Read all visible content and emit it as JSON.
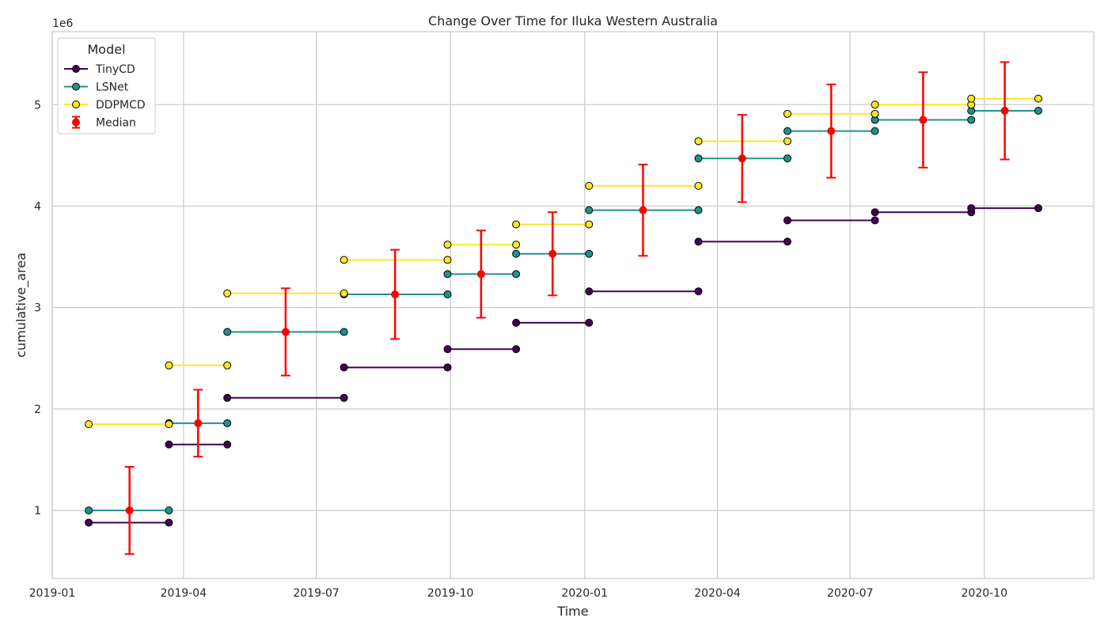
{
  "chart_data": {
    "type": "line",
    "title": "Change Over Time for Iluka Western Australia",
    "xlabel": "Time",
    "ylabel": "cumulative_area",
    "y_offset_label": "1e6",
    "y_scale_factor": 1000000,
    "xlim": [
      "2019-01-01",
      "2020-12-15"
    ],
    "ylim": [
      330000,
      5720000
    ],
    "grid": true,
    "legend": {
      "title": "Model",
      "placement": "top-left"
    },
    "x_ticks": [
      "2019-01",
      "2019-04",
      "2019-07",
      "2019-10",
      "2020-01",
      "2020-04",
      "2020-07",
      "2020-10"
    ],
    "x_tick_dates": [
      "2019-01-01",
      "2019-04-01",
      "2019-07-01",
      "2019-10-01",
      "2020-01-01",
      "2020-04-01",
      "2020-07-01",
      "2020-10-01"
    ],
    "y_ticks": [
      1000000,
      2000000,
      3000000,
      4000000,
      5000000
    ],
    "y_tick_labels": [
      "1",
      "2",
      "3",
      "4",
      "5"
    ],
    "series": [
      {
        "name": "TinyCD",
        "color": "#440154",
        "segments": [
          {
            "start": "2019-01-26",
            "end": "2019-03-22",
            "value": 880000
          },
          {
            "start": "2019-03-22",
            "end": "2019-05-01",
            "value": 1650000
          },
          {
            "start": "2019-05-01",
            "end": "2019-07-20",
            "value": 2110000
          },
          {
            "start": "2019-07-20",
            "end": "2019-09-29",
            "value": 2410000
          },
          {
            "start": "2019-09-29",
            "end": "2019-11-15",
            "value": 2590000
          },
          {
            "start": "2019-11-15",
            "end": "2020-01-04",
            "value": 2850000
          },
          {
            "start": "2020-01-04",
            "end": "2020-03-19",
            "value": 3160000
          },
          {
            "start": "2020-03-19",
            "end": "2020-05-19",
            "value": 3650000
          },
          {
            "start": "2020-05-19",
            "end": "2020-07-18",
            "value": 3860000
          },
          {
            "start": "2020-07-18",
            "end": "2020-09-22",
            "value": 3940000
          },
          {
            "start": "2020-09-22",
            "end": "2020-11-07",
            "value": 3980000
          }
        ]
      },
      {
        "name": "LSNet",
        "color": "#21918c",
        "segments": [
          {
            "start": "2019-01-26",
            "end": "2019-03-22",
            "value": 1000000
          },
          {
            "start": "2019-03-22",
            "end": "2019-05-01",
            "value": 1860000
          },
          {
            "start": "2019-05-01",
            "end": "2019-07-20",
            "value": 2760000
          },
          {
            "start": "2019-07-20",
            "end": "2019-09-29",
            "value": 3130000
          },
          {
            "start": "2019-09-29",
            "end": "2019-11-15",
            "value": 3330000
          },
          {
            "start": "2019-11-15",
            "end": "2020-01-04",
            "value": 3530000
          },
          {
            "start": "2020-01-04",
            "end": "2020-03-19",
            "value": 3960000
          },
          {
            "start": "2020-03-19",
            "end": "2020-05-19",
            "value": 4470000
          },
          {
            "start": "2020-05-19",
            "end": "2020-07-18",
            "value": 4740000
          },
          {
            "start": "2020-07-18",
            "end": "2020-09-22",
            "value": 4850000
          },
          {
            "start": "2020-09-22",
            "end": "2020-11-07",
            "value": 4940000
          }
        ]
      },
      {
        "name": "DDPMCD",
        "color": "#fde725",
        "segments": [
          {
            "start": "2019-01-26",
            "end": "2019-03-22",
            "value": 1850000
          },
          {
            "start": "2019-03-22",
            "end": "2019-05-01",
            "value": 2430000
          },
          {
            "start": "2019-05-01",
            "end": "2019-07-20",
            "value": 3140000
          },
          {
            "start": "2019-07-20",
            "end": "2019-09-29",
            "value": 3470000
          },
          {
            "start": "2019-09-29",
            "end": "2019-11-15",
            "value": 3620000
          },
          {
            "start": "2019-11-15",
            "end": "2020-01-04",
            "value": 3820000
          },
          {
            "start": "2020-01-04",
            "end": "2020-03-19",
            "value": 4200000
          },
          {
            "start": "2020-03-19",
            "end": "2020-05-19",
            "value": 4640000
          },
          {
            "start": "2020-05-19",
            "end": "2020-07-18",
            "value": 4910000
          },
          {
            "start": "2020-07-18",
            "end": "2020-09-22",
            "value": 5000000
          },
          {
            "start": "2020-09-22",
            "end": "2020-11-07",
            "value": 5060000
          }
        ]
      }
    ],
    "median": {
      "name": "Median",
      "color": "#ff0000",
      "points": [
        {
          "x": "2019-02-23",
          "y": 1000000,
          "err": 430000
        },
        {
          "x": "2019-04-11",
          "y": 1860000,
          "err": 330000
        },
        {
          "x": "2019-06-10",
          "y": 2760000,
          "err": 430000
        },
        {
          "x": "2019-08-24",
          "y": 3130000,
          "err": 440000
        },
        {
          "x": "2019-10-22",
          "y": 3330000,
          "err": 430000
        },
        {
          "x": "2019-12-10",
          "y": 3530000,
          "err": 410000
        },
        {
          "x": "2020-02-10",
          "y": 3960000,
          "err": 450000
        },
        {
          "x": "2020-04-18",
          "y": 4470000,
          "err": 430000
        },
        {
          "x": "2020-06-18",
          "y": 4740000,
          "err": 460000
        },
        {
          "x": "2020-08-20",
          "y": 4850000,
          "err": 470000
        },
        {
          "x": "2020-10-15",
          "y": 4940000,
          "err": 480000
        }
      ]
    }
  }
}
